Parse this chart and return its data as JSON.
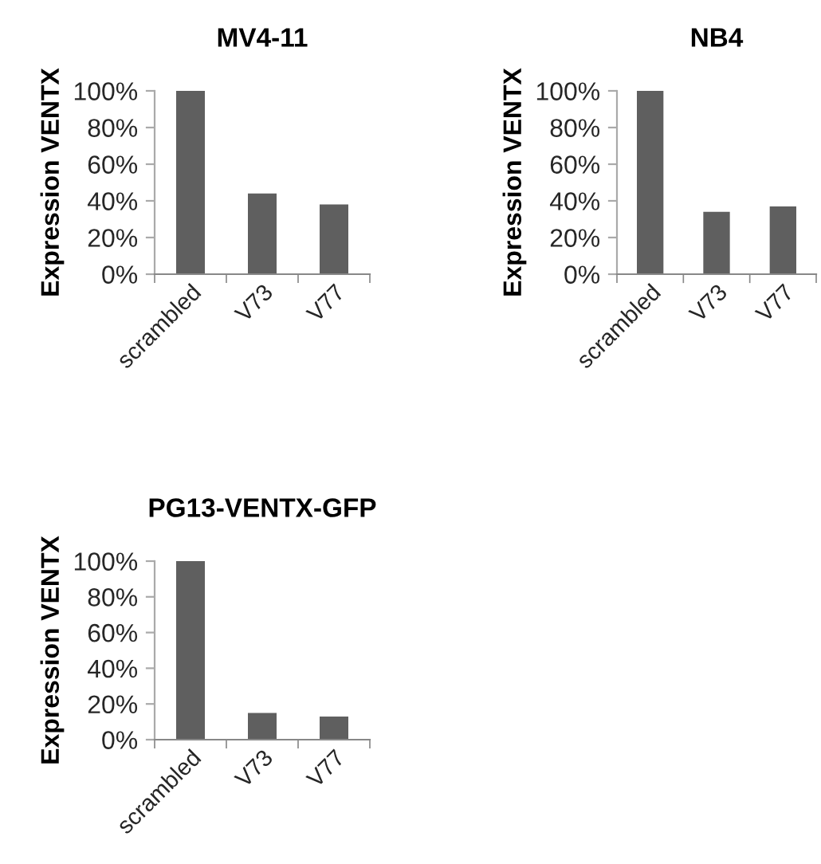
{
  "chart_data": [
    {
      "type": "bar",
      "title": "MV4-11",
      "ylabel": "Expression VENTX",
      "categories": [
        "scrambled",
        "V73",
        "V77"
      ],
      "values": [
        100,
        44,
        38
      ],
      "color": "#5f5f5f",
      "ylim": [
        0,
        100
      ],
      "yticks": [
        {
          "value": 0,
          "label": "0%"
        },
        {
          "value": 20,
          "label": "20%"
        },
        {
          "value": 40,
          "label": "40%"
        },
        {
          "value": 60,
          "label": "60%"
        },
        {
          "value": 80,
          "label": "80%"
        },
        {
          "value": 100,
          "label": "100%"
        }
      ],
      "grid": false
    },
    {
      "type": "bar",
      "title": "NB4",
      "ylabel": "Expression VENTX",
      "categories": [
        "scrambled",
        "V73",
        "V77"
      ],
      "values": [
        100,
        34,
        37
      ],
      "color": "#5f5f5f",
      "ylim": [
        0,
        100
      ],
      "yticks": [
        {
          "value": 0,
          "label": "0%"
        },
        {
          "value": 20,
          "label": "20%"
        },
        {
          "value": 40,
          "label": "40%"
        },
        {
          "value": 60,
          "label": "60%"
        },
        {
          "value": 80,
          "label": "80%"
        },
        {
          "value": 100,
          "label": "100%"
        }
      ],
      "grid": false
    },
    {
      "type": "bar",
      "title": "PG13-VENTX-GFP",
      "ylabel": "Expression VENTX",
      "categories": [
        "scrambled",
        "V73",
        "V77"
      ],
      "values": [
        100,
        15,
        13
      ],
      "color": "#5f5f5f",
      "ylim": [
        0,
        100
      ],
      "yticks": [
        {
          "value": 0,
          "label": "0%"
        },
        {
          "value": 20,
          "label": "20%"
        },
        {
          "value": 40,
          "label": "40%"
        },
        {
          "value": 60,
          "label": "60%"
        },
        {
          "value": 80,
          "label": "80%"
        },
        {
          "value": 100,
          "label": "100%"
        }
      ],
      "grid": false
    }
  ]
}
